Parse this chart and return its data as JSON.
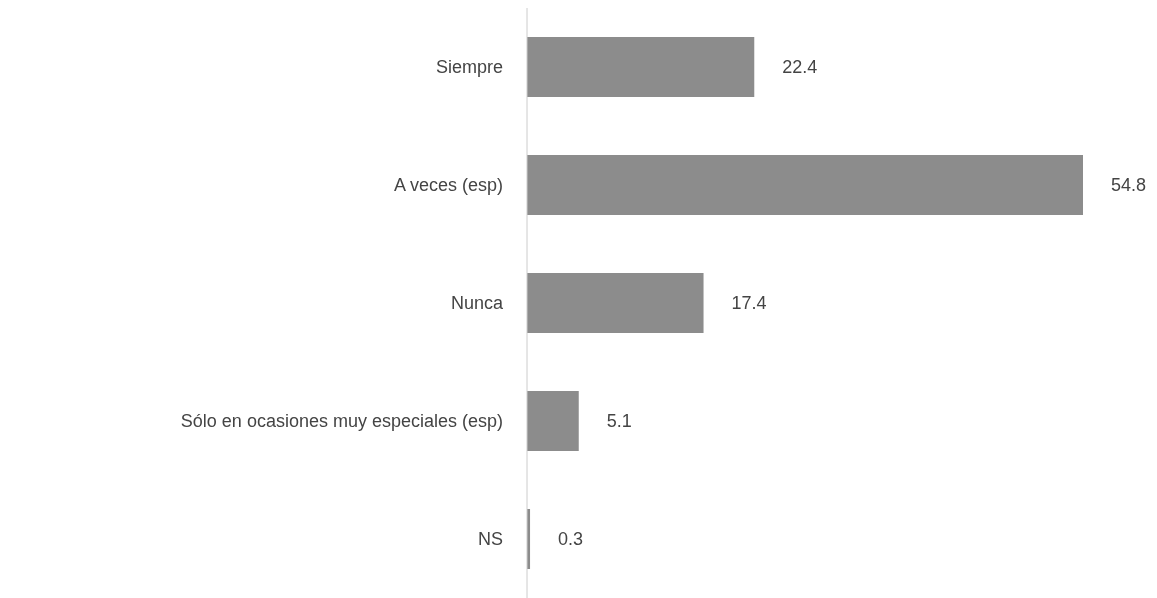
{
  "chart_data": {
    "type": "bar",
    "orientation": "horizontal",
    "categories": [
      "Siempre",
      "A veces (esp)",
      "Nunca",
      "Sólo en ocasiones muy especiales (esp)",
      "NS"
    ],
    "values": [
      22.4,
      54.8,
      17.4,
      5.1,
      0.3
    ],
    "color": "#8c8c8c",
    "data_labels": true
  }
}
